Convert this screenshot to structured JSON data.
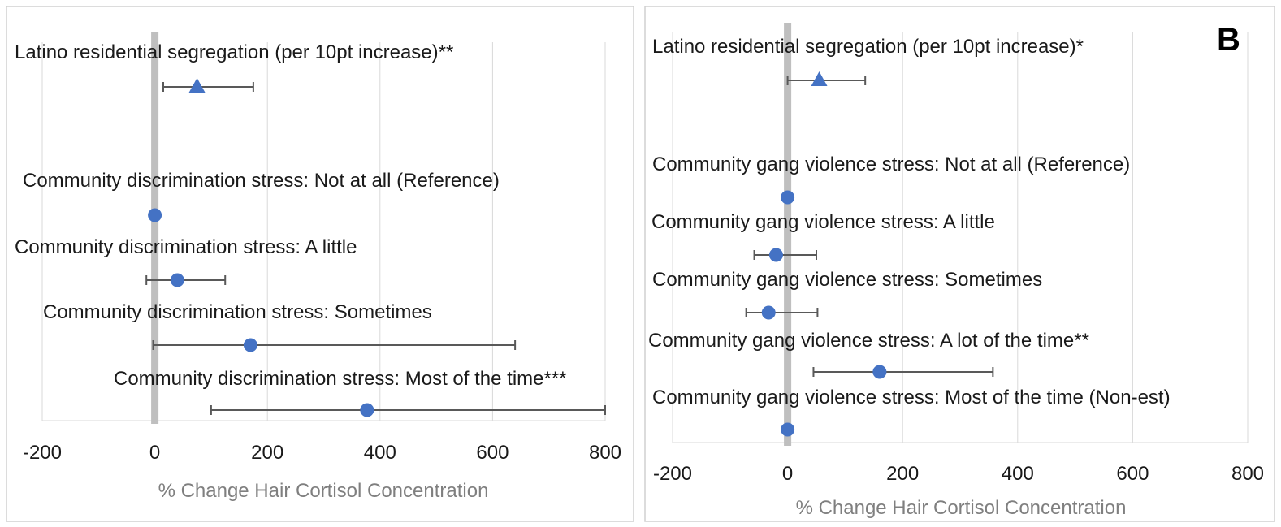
{
  "chart_data": [
    {
      "type": "scatter",
      "panel_label": "",
      "xlabel": "% Change Hair Cortisol Concentration",
      "xlim": [
        -200,
        800
      ],
      "xticks": [
        -200,
        0,
        200,
        400,
        600,
        800
      ],
      "grid": true,
      "points": [
        {
          "label": "Latino residential segregation (per 10pt increase)**",
          "estimate": 75,
          "lower": 15,
          "upper": 175,
          "marker": "triangle"
        },
        {
          "label": "Community discrimination stress: Not at all (Reference)",
          "estimate": 0,
          "lower": null,
          "upper": null,
          "marker": "circle"
        },
        {
          "label": "Community discrimination stress: A little",
          "estimate": 40,
          "lower": -15,
          "upper": 125,
          "marker": "circle"
        },
        {
          "label": "Community discrimination stress: Sometimes",
          "estimate": 170,
          "lower": -3,
          "upper": 640,
          "marker": "circle"
        },
        {
          "label": "Community discrimination stress: Most of the time***",
          "estimate": 377,
          "lower": 100,
          "upper": 800,
          "marker": "circle"
        }
      ]
    },
    {
      "type": "scatter",
      "panel_label": "B",
      "xlabel": "% Change Hair Cortisol Concentration",
      "xlim": [
        -200,
        800
      ],
      "xticks": [
        -200,
        0,
        200,
        400,
        600,
        800
      ],
      "grid": true,
      "points": [
        {
          "label": "Latino residential segregation (per 10pt increase)*",
          "estimate": 55,
          "lower": 0,
          "upper": 135,
          "marker": "triangle"
        },
        {
          "label": "Community gang violence stress: Not at all (Reference)",
          "estimate": 0,
          "lower": null,
          "upper": null,
          "marker": "circle"
        },
        {
          "label": "Community gang violence stress: A little",
          "estimate": -20,
          "lower": -58,
          "upper": 50,
          "marker": "circle"
        },
        {
          "label": "Community gang violence stress: Sometimes",
          "estimate": -33,
          "lower": -72,
          "upper": 52,
          "marker": "circle"
        },
        {
          "label": "Community gang violence stress: A lot of the time**",
          "estimate": 160,
          "lower": 45,
          "upper": 357,
          "marker": "circle"
        },
        {
          "label": "Community gang violence stress: Most of the time (Non-est)",
          "estimate": 0,
          "lower": null,
          "upper": null,
          "marker": "circle"
        }
      ]
    }
  ],
  "colors": {
    "marker": "#4472c4",
    "error_bar": "#595959",
    "zero_line": "#bfbfbf",
    "gridline": "#d9d9d9",
    "frame": "#d0d0d0",
    "axis_title": "#7f7f7f"
  }
}
